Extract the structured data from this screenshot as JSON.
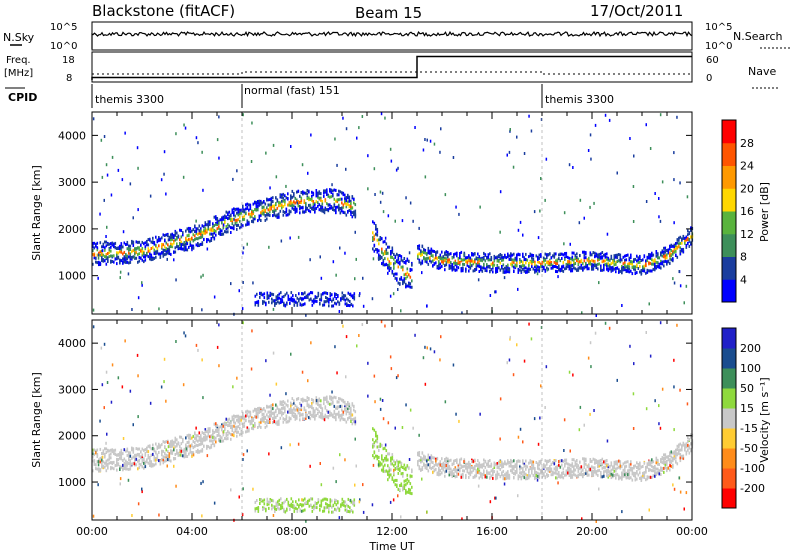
{
  "header": {
    "station": "Blackstone (fitACF)",
    "beam": "Beam 15",
    "date": "17/Oct/2011"
  },
  "top_panels": {
    "nsky_label": "N.Sky",
    "nsearch_label": "N.Search",
    "count_ticks": [
      "10^5",
      "10^0"
    ],
    "freq_label": "Freq.",
    "freq_unit": "[MHz]",
    "freq_ticks": [
      "18",
      "8"
    ],
    "nave_label": "Nave",
    "nave_ticks": [
      "60",
      "0"
    ],
    "cpid_label": "CPID",
    "cpid_segments": [
      {
        "label": "themis 3300",
        "start_hour": 0
      },
      {
        "label": "normal (fast) 151",
        "start_hour": 6
      },
      {
        "label": "themis 3300",
        "start_hour": 18
      }
    ],
    "freq_steps": [
      {
        "start_hour": 0,
        "freq": 9.5
      },
      {
        "start_hour": 13,
        "freq": 16.5
      }
    ]
  },
  "colors": {
    "power": [
      "#0000ff",
      "#1a3d9e",
      "#3d8f5a",
      "#59b33d",
      "#ffd700",
      "#ff9900",
      "#ff5500",
      "#ff0000"
    ],
    "velocity": [
      "#2020c8",
      "#1a4d8f",
      "#3d8f5a",
      "#8fd93d",
      "#c8c8c8",
      "#ffcc33",
      "#ff8c1a",
      "#ff5a1a",
      "#ff0000"
    ],
    "ground": "#c8c8c8"
  },
  "chart_data": [
    {
      "type": "heatmap",
      "name": "Power panel",
      "ylabel": "Slant Range [km]",
      "xlim": [
        0,
        24
      ],
      "ylim": [
        180,
        4500
      ],
      "yticks": [
        "1000",
        "2000",
        "3000",
        "4000"
      ],
      "xticks": [
        "00:00",
        "04:00",
        "08:00",
        "12:00",
        "16:00",
        "20:00",
        "00:00"
      ],
      "colorbar_label": "Power [dB]",
      "colorbar_ticks": [
        "4",
        "8",
        "12",
        "16",
        "20",
        "24",
        "28"
      ],
      "bands": [
        {
          "hours": [
            0,
            2,
            4,
            6,
            8,
            9.5,
            10.5
          ],
          "center_km": [
            1500,
            1550,
            1850,
            2300,
            2600,
            2650,
            2500
          ],
          "width_km": 300
        },
        {
          "hours": [
            11.2,
            11.8,
            12.3,
            12.8
          ],
          "center_km": [
            1900,
            1400,
            1150,
            1000
          ],
          "width_km": 400
        },
        {
          "hours": [
            13,
            14,
            16,
            18,
            20,
            22,
            23,
            24
          ],
          "center_km": [
            1500,
            1350,
            1300,
            1300,
            1350,
            1250,
            1450,
            1900
          ],
          "width_km": 250
        },
        {
          "hours": [
            6.5,
            8,
            10.5
          ],
          "center_km": [
            520,
            530,
            520
          ],
          "width_km": 180
        }
      ]
    },
    {
      "type": "heatmap",
      "name": "Velocity panel",
      "ylabel": "Slant Range [km]",
      "xlim": [
        0,
        24
      ],
      "ylim": [
        180,
        4500
      ],
      "yticks": [
        "1000",
        "2000",
        "3000",
        "4000"
      ],
      "xticks": [
        "00:00",
        "04:00",
        "08:00",
        "12:00",
        "16:00",
        "20:00",
        "00:00"
      ],
      "xlabel": "Time UT",
      "colorbar_label": "Velocity [m s⁻¹]",
      "colorbar_ticks": [
        "200",
        "100",
        "50",
        "15",
        "-15",
        "-50",
        "-100",
        "-200"
      ]
    }
  ]
}
